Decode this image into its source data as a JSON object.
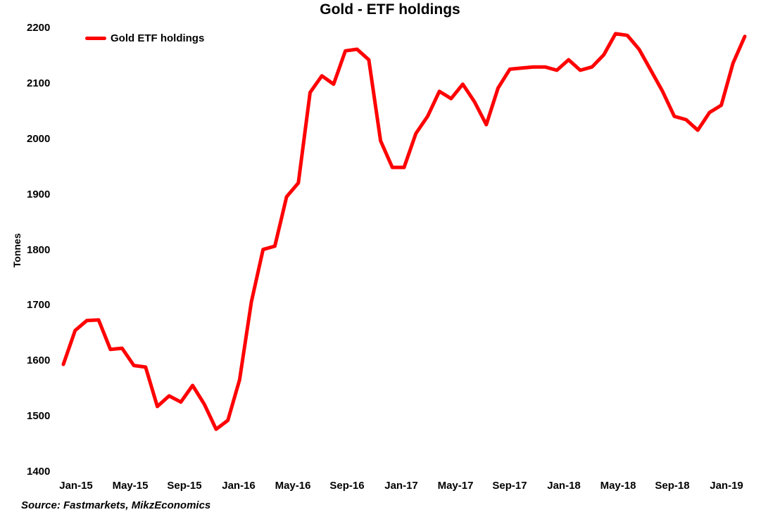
{
  "chart_data": {
    "type": "line",
    "title": "Gold - ETF holdings",
    "xlabel": "",
    "ylabel": "Tonnes",
    "ylim": [
      1400,
      2200
    ],
    "yticks": [
      1400,
      1500,
      1600,
      1700,
      1800,
      1900,
      2000,
      2100,
      2200
    ],
    "xticks": [
      "Jan-15",
      "May-15",
      "Sep-15",
      "Jan-16",
      "May-16",
      "Sep-16",
      "Jan-17",
      "May-17",
      "Sep-17",
      "Jan-18",
      "May-18",
      "Sep-18",
      "Jan-19"
    ],
    "grid": false,
    "legend_position": "top-left",
    "series": [
      {
        "name": "Gold ETF holdings",
        "color": "#ff0000",
        "points": [
          [
            "Dec-14",
            1594
          ],
          [
            "Jan-15",
            1655
          ],
          [
            "Jan-15",
            1673
          ],
          [
            "Feb-15",
            1674
          ],
          [
            "Feb-15",
            1621
          ],
          [
            "Mar-15",
            1623
          ],
          [
            "Apr-15",
            1592
          ],
          [
            "May-15",
            1589
          ],
          [
            "Jul-15",
            1518
          ],
          [
            "Aug-15",
            1537
          ],
          [
            "Aug-15",
            1526
          ],
          [
            "Sep-15",
            1556
          ],
          [
            "Oct-15",
            1522
          ],
          [
            "Nov-15",
            1477
          ],
          [
            "Dec-15",
            1493
          ],
          [
            "Jan-16",
            1566
          ],
          [
            "Feb-16",
            1706
          ],
          [
            "Mar-16",
            1801
          ],
          [
            "Apr-16",
            1807
          ],
          [
            "May-16",
            1896
          ],
          [
            "Jun-16",
            1921
          ],
          [
            "Jul-16",
            2084
          ],
          [
            "Jul-16",
            2114
          ],
          [
            "Aug-16",
            2099
          ],
          [
            "Sep-16",
            2159
          ],
          [
            "Oct-16",
            2162
          ],
          [
            "Oct-16",
            2143
          ],
          [
            "Nov-16",
            1997
          ],
          [
            "Dec-16",
            1949
          ],
          [
            "Dec-16",
            1949
          ],
          [
            "Jan-17",
            2010
          ],
          [
            "Feb-17",
            2041
          ],
          [
            "Mar-17",
            2086
          ],
          [
            "Apr-17",
            2073
          ],
          [
            "May-17",
            2099
          ],
          [
            "Jun-17",
            2067
          ],
          [
            "Jul-17",
            2026
          ],
          [
            "Aug-17",
            2092
          ],
          [
            "Aug-17",
            2126
          ],
          [
            "Sep-17",
            2128
          ],
          [
            "Nov-17",
            2130
          ],
          [
            "Dec-17",
            2130
          ],
          [
            "Jan-18",
            2124
          ],
          [
            "Jan-18",
            2143
          ],
          [
            "Feb-18",
            2124
          ],
          [
            "Mar-18",
            2130
          ],
          [
            "Apr-18",
            2152
          ],
          [
            "May-18",
            2190
          ],
          [
            "May-18",
            2187
          ],
          [
            "Jun-18",
            2162
          ],
          [
            "Jul-18",
            2124
          ],
          [
            "Aug-18",
            2086
          ],
          [
            "Sep-18",
            2041
          ],
          [
            "Oct-18",
            2035
          ],
          [
            "Oct-18",
            2016
          ],
          [
            "Nov-18",
            2048
          ],
          [
            "Dec-18",
            2061
          ],
          [
            "Jan-19",
            2137
          ],
          [
            "Jan-19",
            2185
          ]
        ]
      }
    ],
    "source": "Source: Fastmarkets, MikzEconomics"
  },
  "legend": {
    "label": "Gold ETF holdings"
  },
  "axes": {
    "ylabel": "Tonnes"
  }
}
